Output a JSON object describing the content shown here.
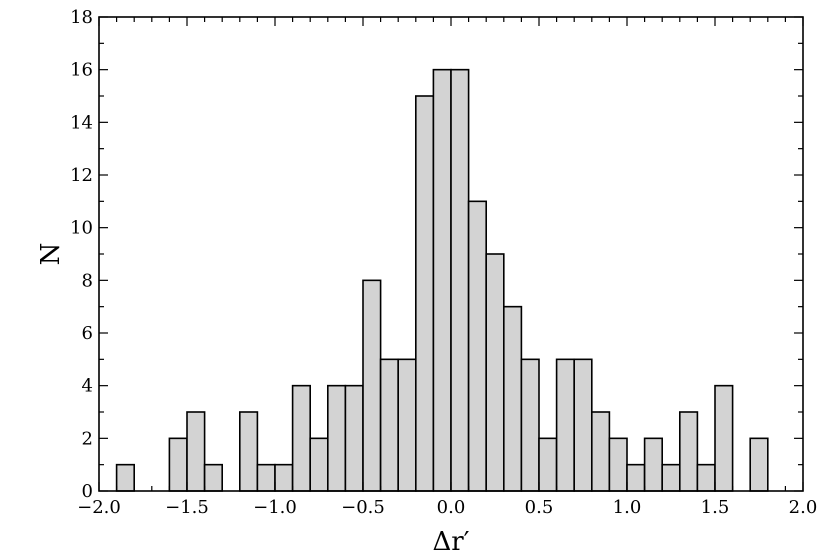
{
  "chart_data": {
    "type": "bar",
    "subtype": "histogram",
    "xlabel": "Δr′",
    "ylabel": "N",
    "xlim": [
      -2.0,
      2.0
    ],
    "ylim": [
      0,
      18
    ],
    "bin_width": 0.1,
    "xticks": [
      -2.0,
      -1.5,
      -1.0,
      -0.5,
      0.0,
      0.5,
      1.0,
      1.5,
      2.0
    ],
    "xtick_labels": [
      "−2.0",
      "−1.5",
      "−1.0",
      "−0.5",
      "0.0",
      "0.5",
      "1.0",
      "1.5",
      "2.0"
    ],
    "yticks": [
      0,
      2,
      4,
      6,
      8,
      10,
      12,
      14,
      16,
      18
    ],
    "ytick_labels": [
      "0",
      "2",
      "4",
      "6",
      "8",
      "10",
      "12",
      "14",
      "16",
      "18"
    ],
    "bin_starts": [
      -1.9,
      -1.6,
      -1.5,
      -1.4,
      -1.2,
      -1.1,
      -1.0,
      -0.9,
      -0.8,
      -0.7,
      -0.6,
      -0.5,
      -0.4,
      -0.3,
      -0.2,
      -0.1,
      0.0,
      0.1,
      0.2,
      0.3,
      0.4,
      0.5,
      0.6,
      0.7,
      0.8,
      0.9,
      1.0,
      1.1,
      1.2,
      1.3,
      1.4,
      1.5,
      1.7
    ],
    "values": [
      1,
      2,
      3,
      1,
      3,
      1,
      1,
      4,
      2,
      4,
      4,
      8,
      5,
      5,
      15,
      16,
      16,
      11,
      9,
      7,
      5,
      2,
      5,
      5,
      3,
      2,
      1,
      2,
      1,
      3,
      1,
      4,
      2
    ],
    "bar_color": "#d3d3d3",
    "edge_color": "#000000",
    "grid": false,
    "legend": "none"
  }
}
